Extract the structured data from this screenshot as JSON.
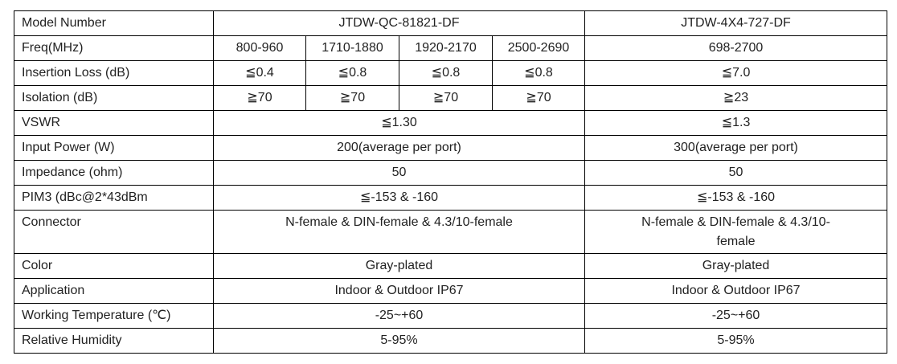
{
  "table": {
    "rows": [
      {
        "label": "Model Number",
        "cells": [
          "JTDW-QC-81821-DF",
          "JTDW-4X4-727-DF"
        ]
      },
      {
        "label": "Freq(MHz)",
        "cells": [
          "800-960",
          "1710-1880",
          "1920-2170",
          "2500-2690",
          "698-2700"
        ]
      },
      {
        "label": "Insertion Loss (dB)",
        "cells": [
          "≦0.4",
          "≦0.8",
          "≦0.8",
          "≦0.8",
          "≦7.0"
        ]
      },
      {
        "label": "Isolation (dB)",
        "cells": [
          "≧70",
          "≧70",
          "≧70",
          "≧70",
          "≧23"
        ]
      },
      {
        "label": "VSWR",
        "cells": [
          "≦1.30",
          "≦1.3"
        ]
      },
      {
        "label": "Input Power (W)",
        "cells": [
          "200(average per port)",
          "300(average per port)"
        ]
      },
      {
        "label": "Impedance (ohm)",
        "cells": [
          "50",
          "50"
        ]
      },
      {
        "label": "PIM3 (dBc@2*43dBm",
        "cells": [
          "≦-153 & -160",
          "≦-153 & -160"
        ]
      },
      {
        "label": "Connector",
        "cells": [
          "N-female & DIN-female & 4.3/10-female",
          "N-female & DIN-female & 4.3/10-female"
        ]
      },
      {
        "label": "Color",
        "cells": [
          "Gray-plated",
          "Gray-plated"
        ]
      },
      {
        "label": "Application",
        "cells": [
          "Indoor & Outdoor IP67",
          "Indoor & Outdoor IP67"
        ]
      },
      {
        "label": "Working Temperature (℃)",
        "cells": [
          "-25~+60",
          "-25~+60"
        ]
      },
      {
        "label": "Relative Humidity",
        "cells": [
          "5-95%",
          "5-95%"
        ]
      }
    ]
  }
}
